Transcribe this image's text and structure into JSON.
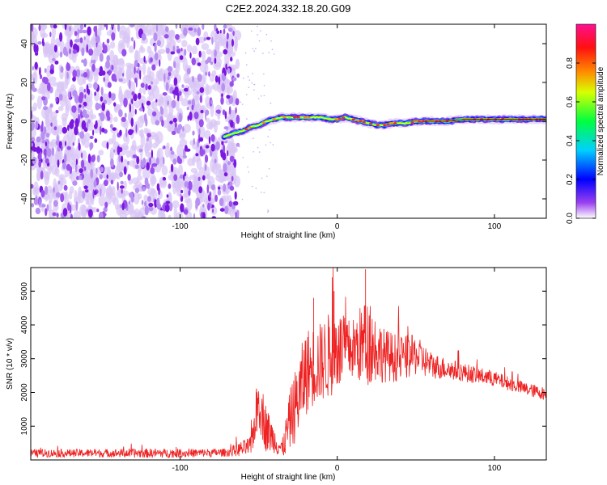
{
  "title": "C2E2.2024.332.18.20.G09",
  "chart_data": [
    {
      "type": "heatmap",
      "xlabel": "Height of straight line (km)",
      "ylabel": "Frequency (Hz)",
      "xlim": [
        -195,
        133
      ],
      "ylim": [
        -50,
        50
      ],
      "xticks": [
        -100,
        0,
        100
      ],
      "yticks": [
        -40,
        -20,
        0,
        20,
        40
      ],
      "noise_region_x": [
        -195,
        -63
      ],
      "ridge": {
        "x": [
          -72,
          -65,
          -60,
          -55,
          -50,
          -45,
          -40,
          -35,
          -30,
          -25,
          -20,
          -15,
          -10,
          -5,
          0,
          5,
          10,
          15,
          20,
          25,
          30,
          35,
          40,
          45,
          50,
          55,
          60,
          70,
          80,
          90,
          100,
          110,
          120,
          133
        ],
        "freq": [
          -8,
          -6,
          -5,
          -3,
          -2,
          0,
          1,
          2,
          2,
          2,
          2,
          2,
          2,
          1,
          1,
          2,
          1,
          0,
          -1,
          -2,
          -2,
          -1,
          -1,
          -1,
          0,
          0,
          0,
          0,
          1,
          1,
          1,
          1,
          1,
          1
        ]
      },
      "colorbar": {
        "label": "Normalized spectral amplitude",
        "range": [
          0,
          1
        ],
        "ticks": [
          "0.0",
          "0.2",
          "0.4",
          "0.6",
          "0.8"
        ],
        "colors": [
          "#ffffff",
          "#7b00e0",
          "#0000ff",
          "#00c8ff",
          "#00ff00",
          "#ffff00",
          "#ff8800",
          "#ff0000",
          "#ff0080"
        ]
      }
    },
    {
      "type": "line",
      "xlabel": "Height of straight line (km)",
      "ylabel": "SNR (10 * v/v)",
      "xlim": [
        -195,
        133
      ],
      "ylim": [
        0,
        5700
      ],
      "xticks": [
        -100,
        0,
        100
      ],
      "yticks": [
        1000,
        2000,
        3000,
        4000,
        5000
      ],
      "series_color": "#ee2222",
      "envelope": {
        "x": [
          -195,
          -150,
          -120,
          -100,
          -70,
          -55,
          -50,
          -45,
          -40,
          -35,
          -30,
          -25,
          -20,
          -15,
          -10,
          -5,
          0,
          5,
          10,
          15,
          20,
          25,
          30,
          40,
          50,
          60,
          70,
          80,
          90,
          100,
          110,
          120,
          133
        ],
        "mean": [
          200,
          200,
          200,
          200,
          220,
          400,
          1800,
          900,
          600,
          300,
          1200,
          1800,
          2600,
          2800,
          2900,
          3100,
          3300,
          3200,
          3300,
          3400,
          3500,
          3300,
          3100,
          3000,
          3100,
          2800,
          2700,
          2600,
          2500,
          2400,
          2250,
          2100,
          1950
        ],
        "amp": [
          120,
          120,
          140,
          130,
          120,
          300,
          900,
          700,
          400,
          300,
          900,
          1200,
          1300,
          1200,
          1200,
          1300,
          1300,
          1000,
          900,
          1200,
          1300,
          1000,
          800,
          700,
          600,
          400,
          320,
          280,
          250,
          230,
          210,
          200,
          190
        ]
      },
      "peaks": {
        "x": [
          -15,
          -2,
          18
        ],
        "y": [
          4800,
          5000,
          5650
        ]
      }
    }
  ]
}
